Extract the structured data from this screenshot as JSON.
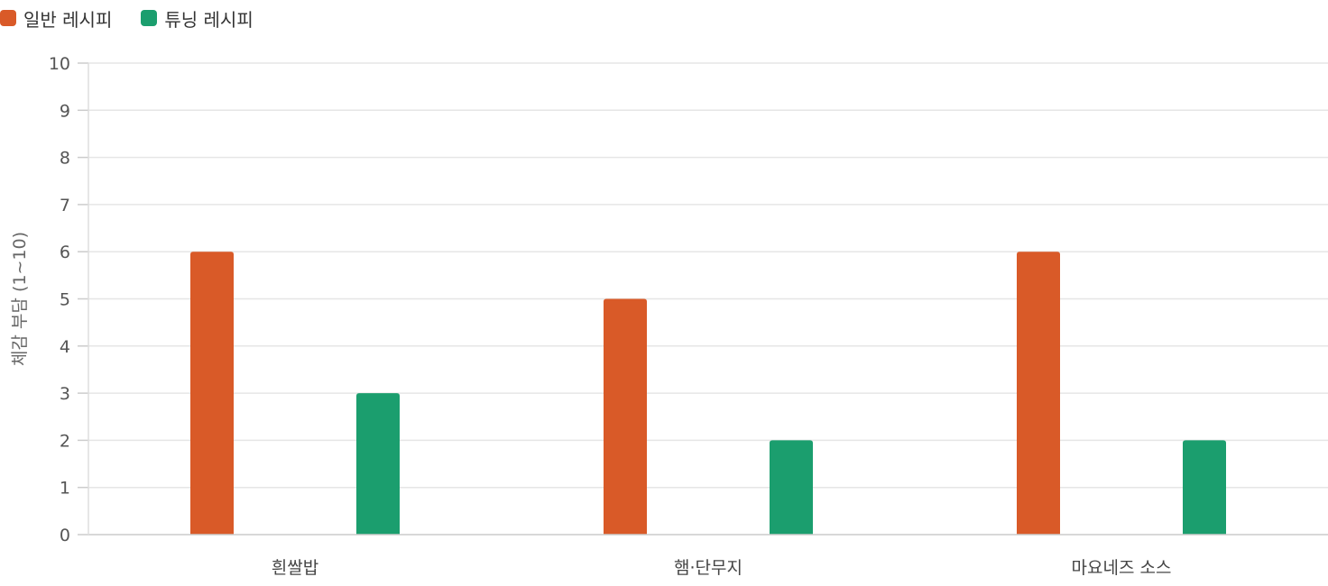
{
  "chart_data": {
    "type": "bar",
    "categories": [
      "흰쌀밥",
      "햄·단무지",
      "마요네즈 소스"
    ],
    "series": [
      {
        "name": "일반 레시피",
        "values": [
          6,
          5,
          6
        ],
        "color": "#d95a28"
      },
      {
        "name": "튜닝 레시피",
        "values": [
          3,
          2,
          2
        ],
        "color": "#1b9e6e"
      }
    ],
    "ylabel": "체감 부담 (1~10)",
    "ylim": [
      0,
      10
    ],
    "yticks": [
      0,
      1,
      2,
      3,
      4,
      5,
      6,
      7,
      8,
      9,
      10
    ],
    "grid": true,
    "legend_position": "top-left"
  }
}
